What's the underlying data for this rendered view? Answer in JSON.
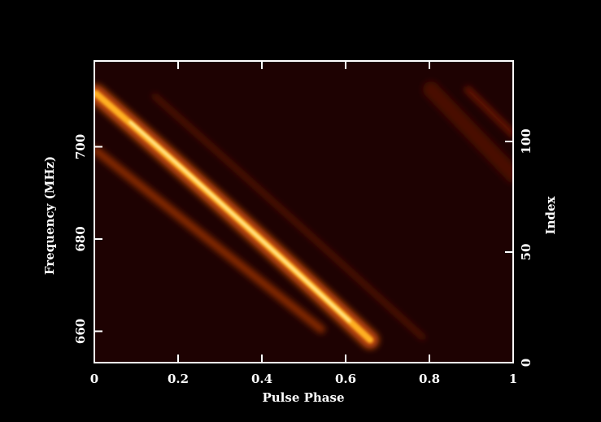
{
  "chart_data": {
    "type": "heatmap",
    "xlabel": "Pulse Phase",
    "ylabel": "Frequency (MHz)",
    "y2label": "Index",
    "xlim": [
      0,
      1
    ],
    "xticks": [
      0,
      0.2,
      0.4,
      0.6,
      0.8,
      1
    ],
    "ylim": [
      653.2,
      718.6
    ],
    "yticks": [
      660,
      680,
      700
    ],
    "y2lim": [
      0,
      136.4
    ],
    "y2ticks": [
      0,
      50,
      100
    ]
  }
}
